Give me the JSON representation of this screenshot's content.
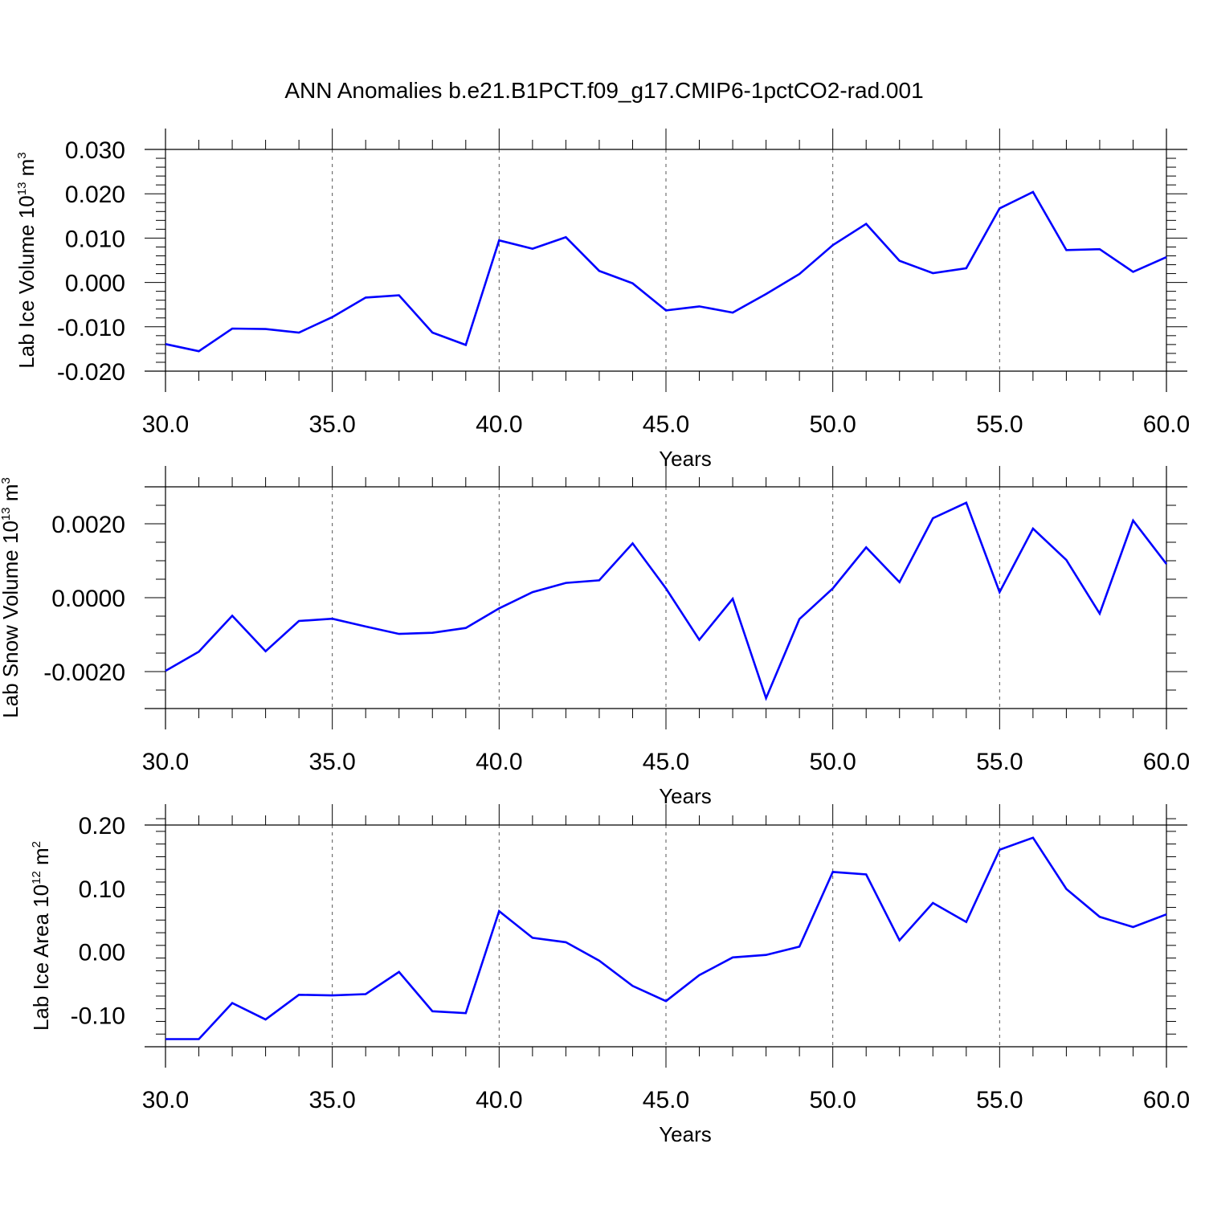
{
  "figure_title": "ANN Anomalies b.e21.B1PCT.f09_g17.CMIP6-1pctCO2-rad.001",
  "chart_data": [
    {
      "type": "line",
      "title": "",
      "xlabel": "Years",
      "ylabel": {
        "text": "Lab Ice Volume 10",
        "exp": "13",
        "unit": " m",
        "unit_exp": "3"
      },
      "xlim": [
        30,
        60
      ],
      "ylim": [
        -0.02,
        0.03
      ],
      "xticks": [
        30,
        35,
        40,
        45,
        50,
        55,
        60
      ],
      "xtick_labels": [
        "30.0",
        "35.0",
        "40.0",
        "45.0",
        "50.0",
        "55.0",
        "60.0"
      ],
      "yticks": [
        -0.02,
        -0.01,
        0.0,
        0.01,
        0.02,
        0.03
      ],
      "ytick_labels": [
        "-0.020",
        "-0.010",
        "0.000",
        "0.010",
        "0.020",
        "0.030"
      ],
      "yminor": 0.002,
      "vgrid": true,
      "line_color": "#0000ff",
      "series": [
        {
          "x": [
            30,
            31,
            32,
            33,
            34,
            35,
            36,
            37,
            38,
            39,
            40,
            41,
            42,
            43,
            44,
            45,
            46,
            47,
            48,
            49,
            50,
            51,
            52,
            53,
            54,
            55,
            56,
            57,
            58,
            59,
            60
          ],
          "values": [
            -0.0139,
            -0.0155,
            -0.0104,
            -0.0105,
            -0.0113,
            -0.0078,
            -0.0034,
            -0.0029,
            -0.0113,
            -0.0141,
            0.0095,
            0.0076,
            0.0102,
            0.0026,
            -0.0002,
            -0.0063,
            -0.0054,
            -0.0068,
            -0.0026,
            0.0019,
            0.0084,
            0.0132,
            0.0049,
            0.0021,
            0.0032,
            0.0167,
            0.0204,
            0.0073,
            0.0075,
            0.0024,
            0.0057
          ]
        }
      ]
    },
    {
      "type": "line",
      "title": "",
      "xlabel": "Years",
      "ylabel": {
        "text": "Lab Snow Volume 10",
        "exp": "13",
        "unit": " m",
        "unit_exp": "3"
      },
      "xlim": [
        30,
        60
      ],
      "ylim": [
        -0.003,
        0.003
      ],
      "xticks": [
        30,
        35,
        40,
        45,
        50,
        55,
        60
      ],
      "xtick_labels": [
        "30.0",
        "35.0",
        "40.0",
        "45.0",
        "50.0",
        "55.0",
        "60.0"
      ],
      "yticks": [
        -0.002,
        0.0,
        0.002
      ],
      "ytick_labels": [
        "-0.0020",
        "0.0000",
        "0.0020"
      ],
      "yminor": 0.0005,
      "vgrid": true,
      "line_color": "#0000ff",
      "series": [
        {
          "x": [
            30,
            31,
            32,
            33,
            34,
            35,
            36,
            37,
            38,
            39,
            40,
            41,
            42,
            43,
            44,
            45,
            46,
            47,
            48,
            49,
            50,
            51,
            52,
            53,
            54,
            55,
            56,
            57,
            58,
            59,
            60
          ],
          "values": [
            -0.00198,
            -0.00146,
            -0.00049,
            -0.00145,
            -0.00063,
            -0.00057,
            -0.00078,
            -0.00098,
            -0.00095,
            -0.00082,
            -0.00029,
            0.00015,
            0.0004,
            0.00047,
            0.00147,
            0.00025,
            -0.00114,
            -3e-05,
            -0.00272,
            -0.00058,
            0.00025,
            0.00136,
            0.00042,
            0.00215,
            0.00257,
            0.00015,
            0.00187,
            0.00102,
            -0.00043,
            0.00209,
            0.00091
          ]
        }
      ]
    },
    {
      "type": "line",
      "title": "",
      "xlabel": "Years",
      "ylabel": {
        "text": "Lab Ice Area 10",
        "exp": "12",
        "unit": " m",
        "unit_exp": "2"
      },
      "xlim": [
        30,
        60
      ],
      "ylim": [
        -0.15,
        0.2
      ],
      "xticks": [
        30,
        35,
        40,
        45,
        50,
        55,
        60
      ],
      "xtick_labels": [
        "30.0",
        "35.0",
        "40.0",
        "45.0",
        "50.0",
        "55.0",
        "60.0"
      ],
      "yticks": [
        -0.1,
        0.0,
        0.1,
        0.2
      ],
      "ytick_labels": [
        "-0.10",
        "0.00",
        "0.10",
        "0.20"
      ],
      "yminor": 0.02,
      "vgrid": true,
      "line_color": "#0000ff",
      "series": [
        {
          "x": [
            30,
            31,
            32,
            33,
            34,
            35,
            36,
            37,
            38,
            39,
            40,
            41,
            42,
            43,
            44,
            45,
            46,
            47,
            48,
            49,
            50,
            51,
            52,
            53,
            54,
            55,
            56,
            57,
            58,
            59,
            60
          ],
          "values": [
            -0.138,
            -0.138,
            -0.081,
            -0.107,
            -0.068,
            -0.069,
            -0.067,
            -0.032,
            -0.094,
            -0.097,
            0.064,
            0.022,
            0.015,
            -0.014,
            -0.054,
            -0.078,
            -0.037,
            -0.009,
            -0.005,
            0.008,
            0.126,
            0.122,
            0.018,
            0.077,
            0.047,
            0.161,
            0.18,
            0.099,
            0.055,
            0.039,
            0.059
          ]
        }
      ]
    }
  ]
}
